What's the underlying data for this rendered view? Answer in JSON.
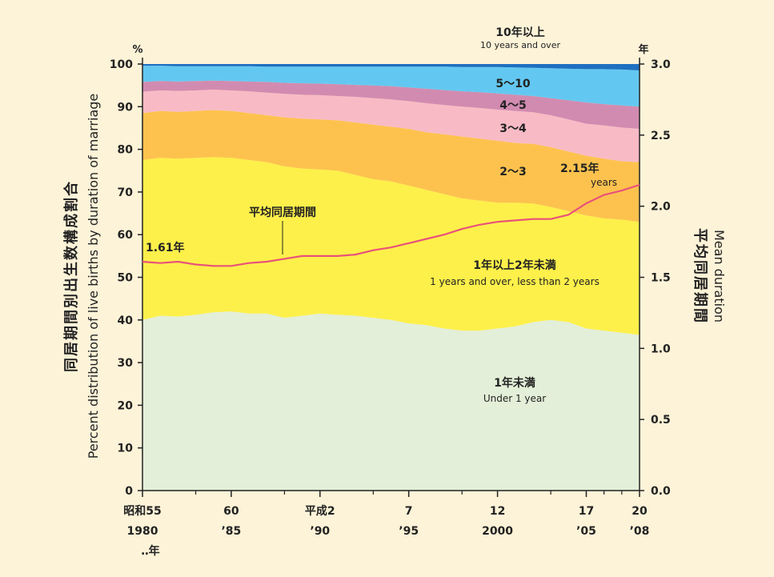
{
  "chart_data": {
    "type": "area",
    "x_labels": [
      {
        "year": 1980,
        "top": "昭和55",
        "bottom": "1980"
      },
      {
        "year": 1985,
        "top": "60",
        "bottom": "’85"
      },
      {
        "year": 1990,
        "top": "平成2",
        "bottom": "’90"
      },
      {
        "year": 1995,
        "top": "7",
        "bottom": "’95"
      },
      {
        "year": 2000,
        "top": "12",
        "bottom": "2000"
      },
      {
        "year": 2005,
        "top": "17",
        "bottom": "’05"
      },
      {
        "year": 2008,
        "top": "20",
        "bottom": "’08"
      }
    ],
    "x_unit_label": "‥年",
    "x_minor_years": [
      1983,
      1988,
      1993,
      1998,
      2003,
      2006,
      2007
    ],
    "x": [
      1980,
      1981,
      1982,
      1983,
      1984,
      1985,
      1986,
      1987,
      1988,
      1989,
      1990,
      1991,
      1992,
      1993,
      1994,
      1995,
      1996,
      1997,
      1998,
      1999,
      2000,
      2001,
      2002,
      2003,
      2004,
      2005,
      2006,
      2007,
      2008
    ],
    "xlim": [
      1980,
      2008
    ],
    "y_left": {
      "ylim": [
        0,
        100
      ],
      "ticks": [
        0,
        10,
        20,
        30,
        40,
        50,
        60,
        70,
        80,
        90,
        100
      ],
      "unit": "%",
      "label_jp": "同居期間別出生数構成割合",
      "label_en": "Percent distribution of live births by duration of marriage"
    },
    "y_right": {
      "ylim": [
        0.0,
        3.0
      ],
      "ticks": [
        "0.0",
        "0.5",
        "1.0",
        "1.5",
        "2.0",
        "2.5",
        "3.0"
      ],
      "unit": "年",
      "label_jp": "平均同居期間",
      "label_en": "Mean duration"
    },
    "series": [
      {
        "name": "1年未満",
        "name_en": "Under 1 year",
        "color": "#e3efd8",
        "cumulative": [
          40.0,
          41.0,
          40.8,
          41.2,
          41.8,
          42.0,
          41.5,
          41.5,
          40.5,
          41.0,
          41.5,
          41.2,
          41.0,
          40.5,
          40.0,
          39.2,
          38.8,
          38.0,
          37.5,
          37.5,
          38.0,
          38.5,
          39.5,
          40.0,
          39.5,
          38.0,
          37.5,
          37.0,
          36.5
        ]
      },
      {
        "name": "1年以上2年未満",
        "name_en": "1 years and over, less than 2 years",
        "color": "#fdf04a",
        "cumulative": [
          77.5,
          78.0,
          77.8,
          78.0,
          78.2,
          78.0,
          77.5,
          77.0,
          76.0,
          75.5,
          75.3,
          75.0,
          74.0,
          73.0,
          72.5,
          71.5,
          70.5,
          69.5,
          68.5,
          68.0,
          67.5,
          67.5,
          67.3,
          66.5,
          65.5,
          64.5,
          63.8,
          63.5,
          63.0
        ]
      },
      {
        "name": "2〜3",
        "color": "#fdc24e",
        "cumulative": [
          88.5,
          89.0,
          88.8,
          89.0,
          89.2,
          89.0,
          88.5,
          88.0,
          87.5,
          87.2,
          87.0,
          86.8,
          86.3,
          85.8,
          85.3,
          84.8,
          84.0,
          83.5,
          83.0,
          82.5,
          82.0,
          81.5,
          81.3,
          80.5,
          79.5,
          78.5,
          77.8,
          77.2,
          77.0
        ]
      },
      {
        "name": "3〜4",
        "color": "#f8bbc5",
        "cumulative": [
          93.5,
          93.8,
          93.7,
          93.8,
          94.0,
          93.8,
          93.6,
          93.3,
          93.0,
          92.8,
          92.7,
          92.5,
          92.3,
          92.0,
          91.7,
          91.3,
          90.8,
          90.4,
          90.0,
          89.7,
          89.3,
          89.0,
          88.7,
          88.0,
          87.0,
          86.0,
          85.6,
          85.1,
          84.8
        ]
      },
      {
        "name": "4〜5",
        "color": "#d28bb0",
        "cumulative": [
          95.8,
          96.0,
          95.9,
          96.0,
          96.1,
          96.0,
          95.9,
          95.8,
          95.6,
          95.5,
          95.4,
          95.3,
          95.1,
          95.0,
          94.8,
          94.5,
          94.2,
          93.9,
          93.6,
          93.4,
          93.1,
          92.8,
          92.5,
          92.0,
          91.5,
          91.0,
          90.6,
          90.3,
          90.0
        ]
      },
      {
        "name": "5〜10",
        "color": "#63c8f1",
        "cumulative": [
          99.6,
          99.6,
          99.5,
          99.5,
          99.5,
          99.5,
          99.5,
          99.4,
          99.4,
          99.4,
          99.4,
          99.4,
          99.4,
          99.4,
          99.4,
          99.4,
          99.4,
          99.4,
          99.3,
          99.3,
          99.3,
          99.2,
          99.1,
          99.0,
          98.9,
          98.8,
          98.8,
          98.7,
          98.5
        ]
      },
      {
        "name": "10年以上",
        "name_en": "10 years and over",
        "color": "#1f6fc0",
        "cumulative": [
          100,
          100,
          100,
          100,
          100,
          100,
          100,
          100,
          100,
          100,
          100,
          100,
          100,
          100,
          100,
          100,
          100,
          100,
          100,
          100,
          100,
          100,
          100,
          100,
          100,
          100,
          100,
          100,
          100
        ]
      }
    ],
    "mean_duration": {
      "name": "平均同居期間",
      "color": "#e8527a",
      "values": [
        1.61,
        1.6,
        1.61,
        1.59,
        1.58,
        1.58,
        1.6,
        1.61,
        1.63,
        1.65,
        1.65,
        1.65,
        1.66,
        1.69,
        1.71,
        1.74,
        1.77,
        1.8,
        1.84,
        1.87,
        1.89,
        1.9,
        1.91,
        1.91,
        1.94,
        2.02,
        2.08,
        2.11,
        2.15
      ],
      "start_label": "1.61年",
      "end_label": "2.15年",
      "end_label_en": "years"
    },
    "labels": {
      "ten_plus_jp": "10年以上",
      "ten_plus_en": "10 years and over",
      "five_ten": "5〜10",
      "four_five": "4〜5",
      "three_four": "3〜4",
      "two_three": "2〜3",
      "one_two_jp": "1年以上2年未満",
      "one_two_en": "1 years and over, less than 2 years",
      "under_one_jp": "1年未満",
      "under_one_en": "Under 1 year",
      "mean_label": "平均同居期間"
    }
  }
}
